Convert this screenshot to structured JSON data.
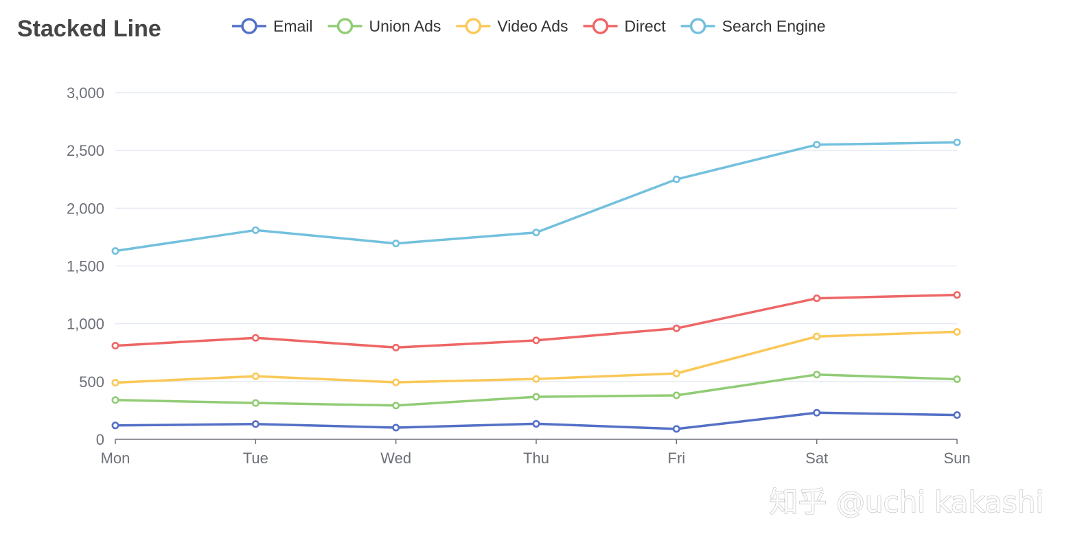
{
  "chart_data": {
    "type": "line",
    "title": "Stacked Line",
    "stacked": true,
    "categories": [
      "Mon",
      "Tue",
      "Wed",
      "Thu",
      "Fri",
      "Sat",
      "Sun"
    ],
    "series": [
      {
        "name": "Email",
        "color": "#5470c6",
        "values": [
          120,
          132,
          101,
          134,
          90,
          230,
          210
        ]
      },
      {
        "name": "Union Ads",
        "color": "#91cc75",
        "values": [
          220,
          182,
          191,
          234,
          290,
          330,
          310
        ]
      },
      {
        "name": "Video Ads",
        "color": "#fac858",
        "values": [
          150,
          232,
          201,
          154,
          190,
          330,
          410
        ]
      },
      {
        "name": "Direct",
        "color": "#ee6666",
        "values": [
          320,
          332,
          301,
          334,
          390,
          330,
          320
        ]
      },
      {
        "name": "Search Engine",
        "color": "#73c0de",
        "values": [
          820,
          932,
          901,
          934,
          1290,
          1330,
          1320
        ]
      }
    ],
    "xlabel": "",
    "ylabel": "",
    "ylim": [
      0,
      3000
    ],
    "yticks": [
      "0",
      "500",
      "1,000",
      "1,500",
      "2,000",
      "2,500",
      "3,000"
    ],
    "grid": true,
    "legend_position": "top"
  },
  "watermark": "知乎 @uchi kakashi"
}
